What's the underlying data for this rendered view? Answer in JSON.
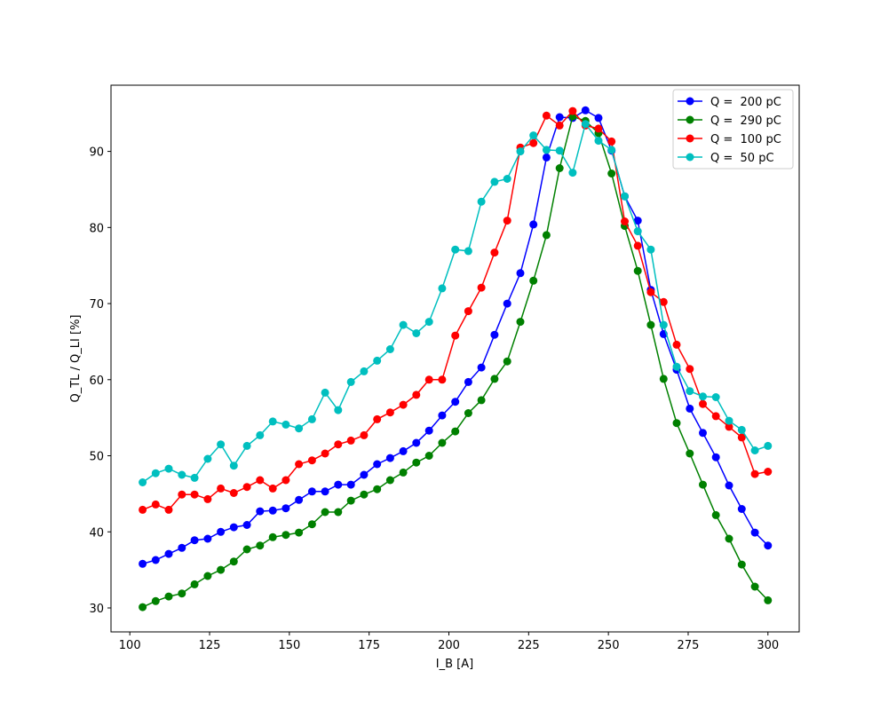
{
  "chart_data": {
    "type": "line",
    "title": "",
    "xlabel": "I_B [A]",
    "ylabel": "Q_TL / Q_LI  [%]",
    "xlim": [
      94.1,
      309.8
    ],
    "ylim": [
      26.85,
      98.7
    ],
    "xticks": [
      100,
      125,
      150,
      175,
      200,
      225,
      250,
      275,
      300
    ],
    "yticks": [
      30,
      40,
      50,
      60,
      70,
      80,
      90
    ],
    "grid": false,
    "legend_position": "top-right",
    "x": [
      104.0,
      108.1,
      112.2,
      116.3,
      120.3,
      124.4,
      128.5,
      132.6,
      136.7,
      140.8,
      144.8,
      148.9,
      153.0,
      157.1,
      161.2,
      165.3,
      169.3,
      173.4,
      177.5,
      181.6,
      185.7,
      189.8,
      193.8,
      197.9,
      202.0,
      206.1,
      210.2,
      214.3,
      218.3,
      222.4,
      226.5,
      230.6,
      234.7,
      238.8,
      242.8,
      246.9,
      251.0,
      255.1,
      259.2,
      263.3,
      267.3,
      271.4,
      275.5,
      279.6,
      283.7,
      287.8,
      291.8,
      295.9,
      300.0
    ],
    "series": [
      {
        "name": "Q =  200 pC",
        "color": "#0000ff",
        "values": [
          35.8,
          36.3,
          37.1,
          37.9,
          38.9,
          39.1,
          40.0,
          40.6,
          40.9,
          42.7,
          42.8,
          43.1,
          44.2,
          45.3,
          45.3,
          46.2,
          46.2,
          47.5,
          48.9,
          49.7,
          50.6,
          51.7,
          53.3,
          55.3,
          57.1,
          59.7,
          61.6,
          65.9,
          70.0,
          74.0,
          80.4,
          89.2,
          94.5,
          94.4,
          95.4,
          94.4,
          90.1,
          84.1,
          80.9,
          71.8,
          66.0,
          61.3,
          56.2,
          53.0,
          49.8,
          46.1,
          43.0,
          39.9,
          38.2
        ]
      },
      {
        "name": "Q =  290 pC",
        "color": "#008000",
        "values": [
          30.1,
          30.9,
          31.5,
          31.9,
          33.1,
          34.2,
          35.0,
          36.1,
          37.7,
          38.2,
          39.3,
          39.6,
          39.9,
          41.0,
          42.6,
          42.6,
          44.1,
          44.9,
          45.6,
          46.8,
          47.8,
          49.1,
          50.0,
          51.7,
          53.2,
          55.6,
          57.3,
          60.1,
          62.4,
          67.6,
          73.0,
          79.0,
          87.8,
          94.6,
          94.0,
          92.4,
          87.1,
          80.2,
          74.3,
          67.2,
          60.1,
          54.3,
          50.3,
          46.2,
          42.2,
          39.1,
          35.7,
          32.8,
          31.0
        ]
      },
      {
        "name": "Q =  100 pC",
        "color": "#ff0000",
        "values": [
          42.9,
          43.6,
          42.9,
          44.9,
          44.9,
          44.3,
          45.7,
          45.1,
          45.9,
          46.8,
          45.7,
          46.8,
          48.9,
          49.4,
          50.3,
          51.5,
          52.0,
          52.7,
          54.8,
          55.7,
          56.7,
          58.0,
          60.0,
          60.0,
          65.8,
          69.0,
          72.1,
          76.7,
          80.9,
          90.5,
          91.1,
          94.7,
          93.4,
          95.3,
          93.4,
          93.0,
          91.3,
          80.8,
          77.6,
          71.5,
          70.2,
          64.6,
          61.4,
          56.8,
          55.2,
          53.8,
          52.4,
          47.6,
          47.9
        ]
      },
      {
        "name": "Q =  50 pC",
        "color": "#00bfbf",
        "values": [
          46.5,
          47.7,
          48.3,
          47.5,
          47.1,
          49.6,
          51.5,
          48.7,
          51.3,
          52.7,
          54.5,
          54.1,
          53.6,
          54.8,
          58.3,
          56.0,
          59.7,
          61.1,
          62.5,
          64.0,
          67.2,
          66.1,
          67.6,
          72.0,
          77.1,
          76.9,
          83.4,
          86.0,
          86.4,
          90.0,
          92.1,
          90.2,
          90.1,
          87.2,
          93.6,
          91.4,
          90.2,
          84.1,
          79.5,
          77.1,
          67.2,
          61.7,
          58.5,
          57.8,
          57.7,
          54.6,
          53.4,
          50.7,
          51.3
        ]
      }
    ]
  }
}
